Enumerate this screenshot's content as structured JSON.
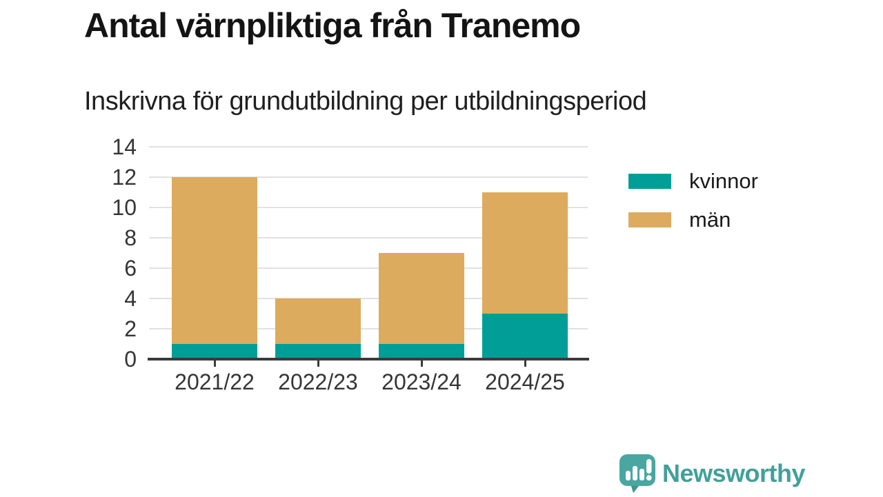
{
  "title": "Antal värnpliktiga från Tranemo",
  "subtitle": "Inskrivna för grundutbildning per utbildningsperiod",
  "chart_data": {
    "type": "bar",
    "stacked": true,
    "title": "Antal värnpliktiga från Tranemo",
    "subtitle": "Inskrivna för grundutbildning per utbildningsperiod",
    "categories": [
      "2021/22",
      "2022/23",
      "2023/24",
      "2024/25"
    ],
    "series": [
      {
        "name": "kvinnor",
        "color": "#009e96",
        "values": [
          1,
          1,
          1,
          3
        ]
      },
      {
        "name": "män",
        "color": "#dcab5d",
        "values": [
          11,
          3,
          6,
          8
        ]
      }
    ],
    "totals": [
      12,
      4,
      7,
      11
    ],
    "xlabel": "",
    "ylabel": "",
    "ylim": [
      0,
      14
    ],
    "yticks": [
      0,
      2,
      4,
      6,
      8,
      10,
      12,
      14
    ],
    "grid": "horizontal",
    "legend_position": "right"
  },
  "colors": {
    "kvinnor": "#009e96",
    "man": "#dcab5d",
    "axis": "#3b3b3b",
    "gridline": "#e1e1e1",
    "brand_teal": "#42a09a"
  },
  "footer": {
    "brand": "Newsworthy"
  }
}
